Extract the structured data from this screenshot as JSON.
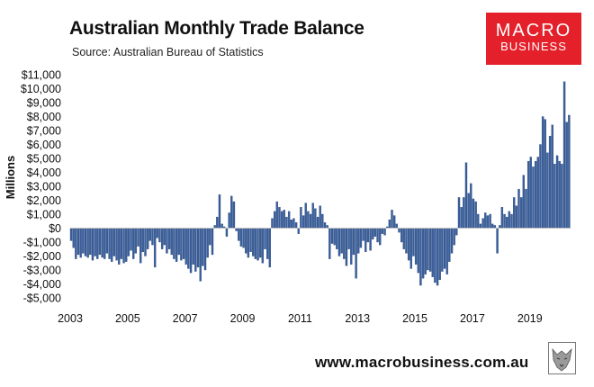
{
  "header": {
    "title": "Australian Monthly Trade Balance",
    "subtitle": "Source: Australian Bureau of Statistics"
  },
  "logo": {
    "top": "MACRO",
    "bottom": "BUSINESS",
    "color": "#e4212b"
  },
  "footer": {
    "url": "www.macrobusiness.com.au",
    "icon": "wolf-icon"
  },
  "colors": {
    "bar": "#3a5f9e",
    "bar_edge": "#22406f",
    "axis": "#bfbfbf"
  },
  "chart_data": {
    "type": "bar",
    "title": "Australian Monthly Trade Balance",
    "ylabel": "Millions",
    "xlabel": "",
    "ylim": [
      -5000,
      11000
    ],
    "ytick_values": [
      11000,
      10000,
      9000,
      8000,
      7000,
      6000,
      5000,
      4000,
      3000,
      2000,
      1000,
      0,
      -1000,
      -2000,
      -3000,
      -4000,
      -5000
    ],
    "ytick_labels": [
      "$11,000",
      "$10,000",
      "$9,000",
      "$8,000",
      "$7,000",
      "$6,000",
      "$5,000",
      "$4,000",
      "$3,000",
      "$2,000",
      "$1,000",
      "$0",
      "-$1,000",
      "-$2,000",
      "-$3,000",
      "-$4,000",
      "-$5,000"
    ],
    "xtick_labels": [
      "2003",
      "2005",
      "2007",
      "2009",
      "2011",
      "2013",
      "2015",
      "2017",
      "2019"
    ],
    "grid": false,
    "legend": "none",
    "series": [
      {
        "start": "2003-01",
        "values": [
          -900,
          -1400,
          -2200,
          -1900,
          -2100,
          -1800,
          -2000,
          -2100,
          -1900,
          -2300,
          -2000,
          -2200,
          -1900,
          -2100,
          -2200,
          -1800,
          -2200,
          -2400,
          -2000,
          -2300,
          -2600,
          -2200,
          -2500,
          -2400,
          -2000,
          -1600,
          -2200,
          -1800,
          -1300,
          -2500,
          -1700,
          -2000,
          -1500,
          -900,
          -1200,
          -2800,
          -700,
          -1000,
          -1500,
          -1200,
          -1800,
          -1500,
          -1900,
          -2200,
          -2400,
          -1900,
          -2300,
          -2200,
          -2600,
          -2900,
          -3200,
          -2600,
          -3100,
          -2800,
          -3800,
          -2700,
          -3000,
          -2100,
          -1200,
          -1900,
          200,
          800,
          2400,
          300,
          100,
          -600,
          1100,
          2300,
          1900,
          -200,
          -900,
          -1300,
          -1400,
          -1800,
          -2100,
          -1700,
          -2000,
          -2200,
          -2300,
          -2100,
          -2500,
          -1500,
          -2200,
          -2800,
          700,
          1200,
          1900,
          1500,
          1200,
          1300,
          800,
          1200,
          600,
          700,
          400,
          -400,
          1500,
          900,
          1800,
          1200,
          1000,
          1800,
          1400,
          800,
          1600,
          1000,
          400,
          200,
          -2200,
          -1100,
          -1200,
          -1500,
          -2000,
          -1800,
          -2200,
          -2700,
          -1500,
          -2600,
          -1900,
          -3600,
          -1800,
          -1400,
          -900,
          -1700,
          -1000,
          -1600,
          -800,
          -600,
          -1000,
          -1200,
          -400,
          -500,
          100,
          600,
          1300,
          900,
          300,
          -300,
          -1000,
          -1500,
          -1800,
          -2300,
          -2900,
          -2000,
          -2600,
          -3200,
          -4100,
          -3600,
          -3300,
          -3000,
          -3100,
          -3500,
          -3900,
          -4100,
          -3700,
          -3100,
          -2900,
          -3300,
          -2400,
          -1800,
          -1200,
          -500,
          2200,
          1500,
          2200,
          4700,
          2500,
          3200,
          2100,
          1900,
          1000,
          300,
          700,
          1100,
          900,
          1000,
          300,
          200,
          -1800,
          200,
          1500,
          1000,
          800,
          1200,
          1000,
          2200,
          1600,
          2800,
          2200,
          3800,
          2800,
          4800,
          5100,
          4400,
          4800,
          5100,
          6000,
          8000,
          7800,
          5400,
          6600,
          7400,
          4600,
          5200,
          4800,
          4600,
          10500,
          7600,
          8100
        ]
      }
    ]
  }
}
